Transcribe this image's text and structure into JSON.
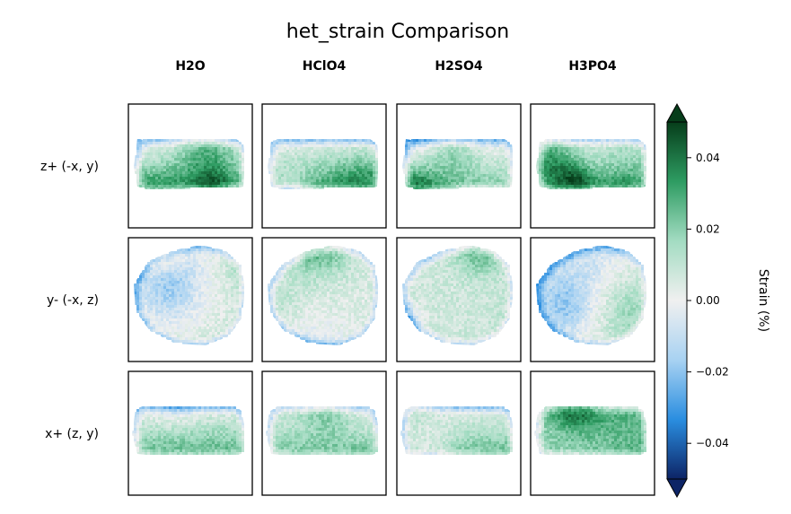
{
  "chart_data": {
    "type": "heatmap",
    "title": "het_strain Comparison",
    "columns": [
      "H2O",
      "HClO4",
      "H2SO4",
      "H3PO4"
    ],
    "rows": [
      "z+ (-x, y)",
      "y- (-x, z)",
      "x+ (z, y)"
    ],
    "colorbar": {
      "label": "Strain (%)",
      "range": [
        -0.05,
        0.05
      ],
      "ticks": [
        0.04,
        0.02,
        0.0,
        -0.02,
        -0.04
      ],
      "tick_labels": [
        "0.04",
        "0.02",
        "0.00",
        "−0.02",
        "−0.04"
      ],
      "extend": "both",
      "colors": [
        "#0d2466",
        "#2a8ee0",
        "#a8d2f2",
        "#f0f0f0",
        "#a3dcc2",
        "#2e9c62",
        "#063d1a"
      ]
    },
    "panel_mean_strain": [
      [
        0.008,
        0.01,
        0.005,
        0.012
      ],
      [
        0.01,
        0.009,
        0.012,
        0.006
      ],
      [
        0.01,
        0.008,
        0.011,
        0.007
      ]
    ]
  }
}
